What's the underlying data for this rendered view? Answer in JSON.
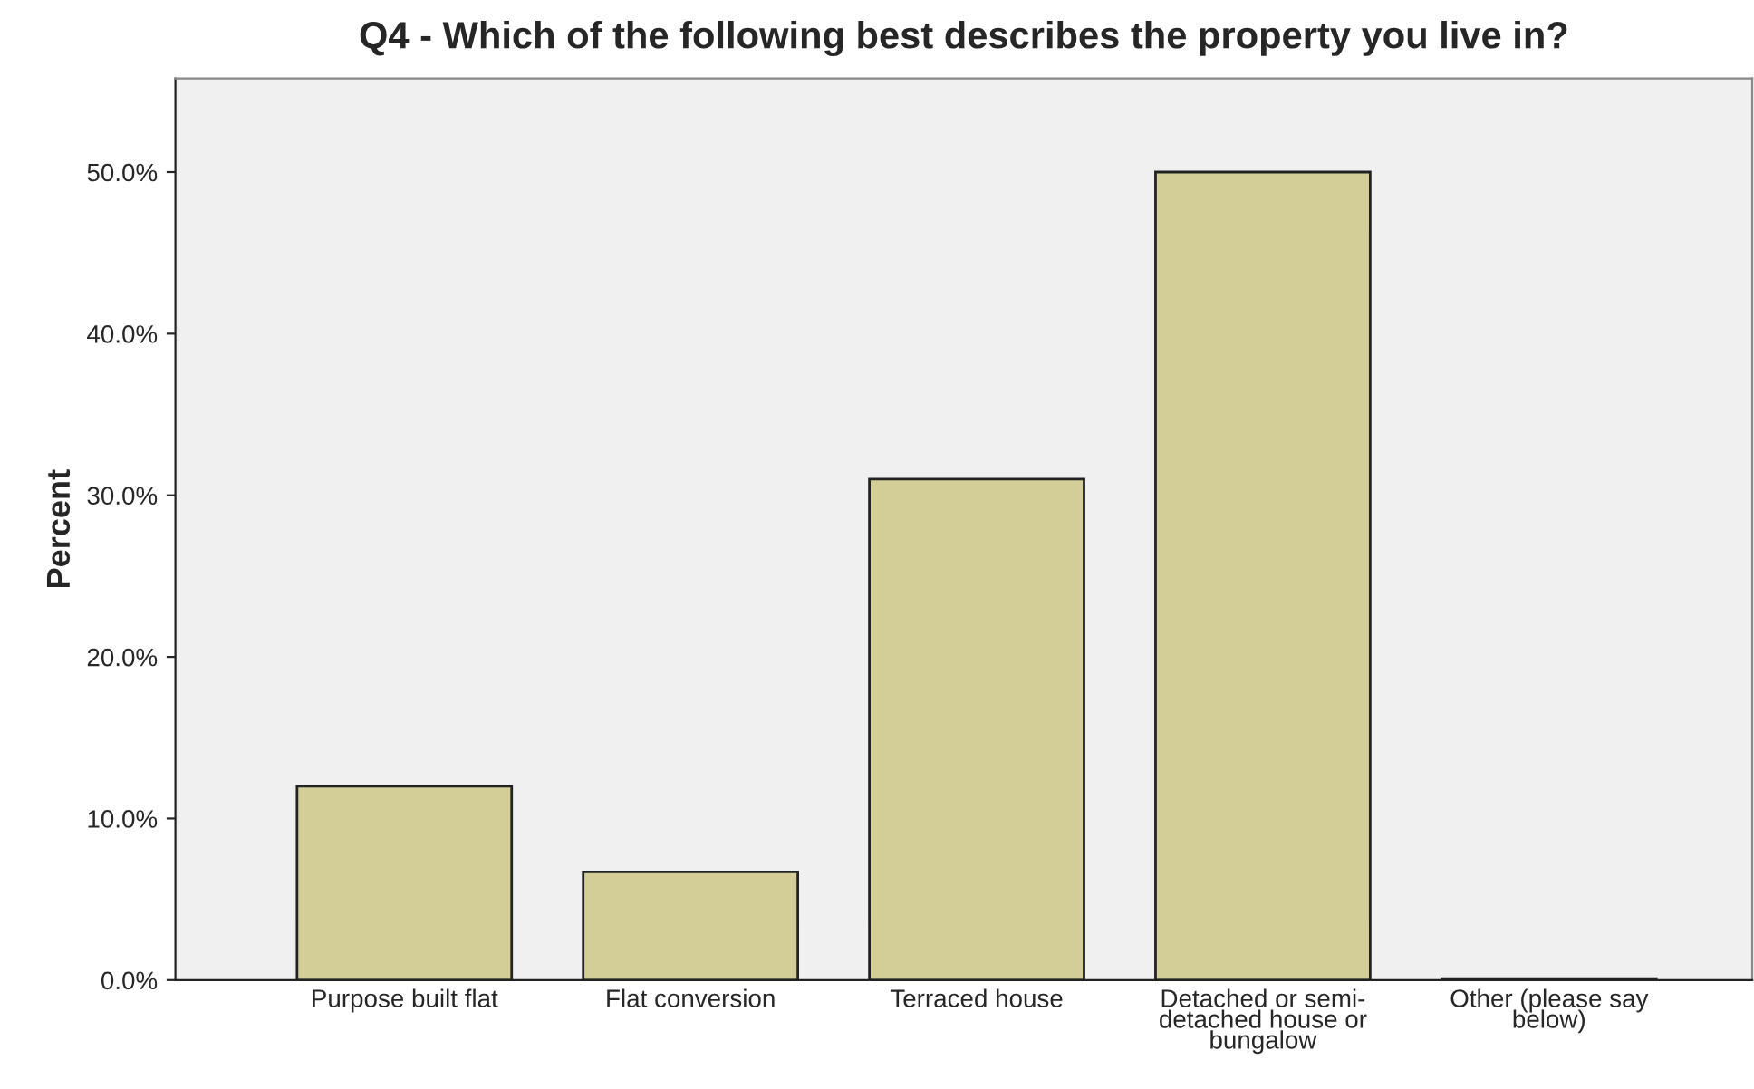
{
  "chart_data": {
    "type": "bar",
    "title": "Q4 - Which of the following best describes the property you live in?",
    "ylabel": "Percent",
    "categories": [
      "Purpose built flat",
      "Flat conversion",
      "Terraced house",
      "Detached or semi-\ndetached house or\nbungalow",
      "Other (please say\nbelow)"
    ],
    "values": [
      12.0,
      6.7,
      31.0,
      50.0,
      0.1
    ],
    "color": "#d3ce97",
    "ylim": [
      0,
      55.8
    ],
    "yticks": [
      {
        "value": 0,
        "label": "0.0%"
      },
      {
        "value": 10,
        "label": "10.0%"
      },
      {
        "value": 20,
        "label": "20.0%"
      },
      {
        "value": 30,
        "label": "30.0%"
      },
      {
        "value": 40,
        "label": "40.0%"
      },
      {
        "value": 50,
        "label": "50.0%"
      }
    ],
    "grid": false,
    "legend": false
  }
}
